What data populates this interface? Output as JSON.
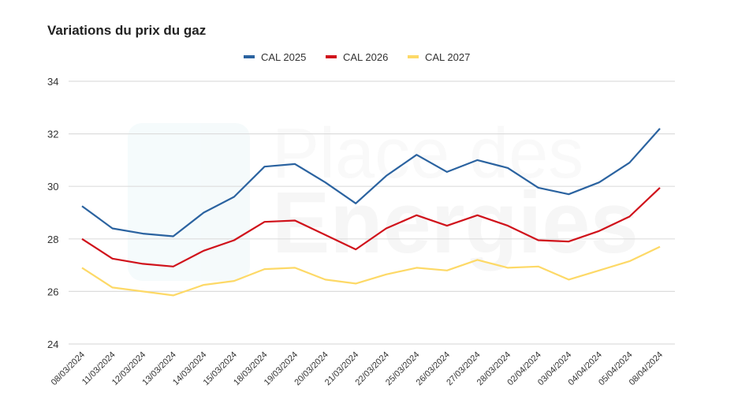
{
  "chart_data": {
    "type": "line",
    "title": "Variations du prix du gaz",
    "xlabel": "",
    "ylabel": "",
    "ylim": [
      24,
      34
    ],
    "yticks": [
      24,
      26,
      28,
      30,
      32,
      34
    ],
    "grid": true,
    "legend_position": "top",
    "categories": [
      "08/03/2024",
      "11/03/2024",
      "12/03/2024",
      "13/03/2024",
      "14/03/2024",
      "15/03/2024",
      "18/03/2024",
      "19/03/2024",
      "20/03/2024",
      "21/03/2024",
      "22/03/2024",
      "25/03/2024",
      "26/03/2024",
      "27/03/2024",
      "28/03/2024",
      "02/04/2024",
      "03/04/2024",
      "04/04/2024",
      "05/04/2024",
      "08/04/2024"
    ],
    "series": [
      {
        "name": "CAL 2025",
        "color": "#2b63a0",
        "values": [
          29.25,
          28.4,
          28.2,
          28.1,
          29.0,
          29.6,
          30.75,
          30.85,
          30.15,
          29.35,
          30.4,
          31.2,
          30.55,
          31.0,
          30.7,
          29.95,
          29.7,
          30.15,
          30.9,
          32.2
        ]
      },
      {
        "name": "CAL 2026",
        "color": "#d0121b",
        "values": [
          28.0,
          27.25,
          27.05,
          26.95,
          27.55,
          27.95,
          28.65,
          28.7,
          28.15,
          27.6,
          28.4,
          28.9,
          28.5,
          28.9,
          28.5,
          27.95,
          27.9,
          28.3,
          28.85,
          29.95
        ]
      },
      {
        "name": "CAL 2027",
        "color": "#fdd967",
        "values": [
          26.9,
          26.15,
          26.0,
          25.85,
          26.25,
          26.4,
          26.85,
          26.9,
          26.45,
          26.3,
          26.65,
          26.9,
          26.8,
          27.2,
          26.9,
          26.95,
          26.45,
          26.8,
          27.15,
          27.7
        ]
      }
    ]
  },
  "watermark": {
    "line1": "Place des",
    "line2": "Energies"
  }
}
